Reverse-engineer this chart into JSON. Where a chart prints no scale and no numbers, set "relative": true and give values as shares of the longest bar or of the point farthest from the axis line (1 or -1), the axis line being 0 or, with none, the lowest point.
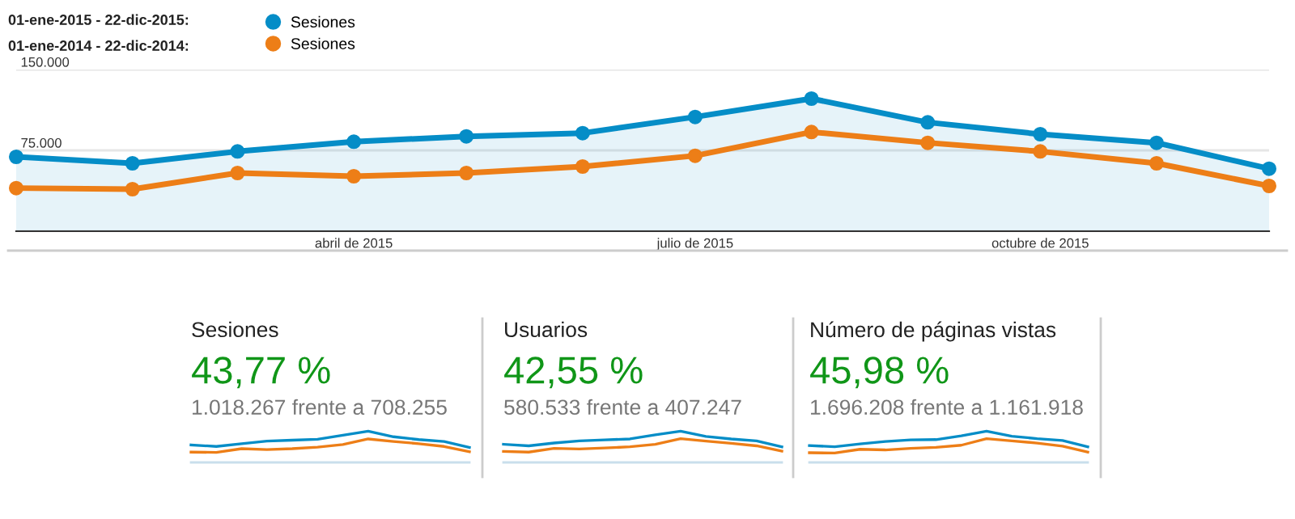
{
  "chart_data": [
    {
      "type": "line",
      "annotations": [
        "01-ene-2015 - 22-dic-2015:",
        "01-ene-2014 - 22-dic-2014:"
      ],
      "x": [
        "2015-01-01",
        "2015-02-01",
        "2015-03-01",
        "2015-04-01",
        "2015-05-01",
        "2015-06-01",
        "2015-07-01",
        "2015-08-01",
        "2015-09-01",
        "2015-10-01",
        "2015-11-01",
        "2015-12-01"
      ],
      "series": [
        {
          "name": "Sesiones",
          "type": "area",
          "color": "#058dc7",
          "values": [
            69000,
            63000,
            74000,
            83000,
            88000,
            91000,
            106000,
            123000,
            101000,
            90000,
            82000,
            58000
          ]
        },
        {
          "name": "Sesiones",
          "type": "line",
          "color": "#ed7e17",
          "values": [
            40000,
            39000,
            54000,
            51000,
            54000,
            60000,
            70000,
            92000,
            82000,
            74000,
            63000,
            42000
          ]
        }
      ],
      "xlim": [
        "2015-01-01",
        "2015-12-01"
      ],
      "ylim": [
        0,
        150000
      ],
      "xticks": [
        {
          "value": "2015-04-01",
          "label": "abril de 2015"
        },
        {
          "value": "2015-07-01",
          "label": "julio de 2015"
        },
        {
          "value": "2015-10-01",
          "label": "octubre de 2015"
        }
      ],
      "yticks": [
        {
          "value": 0,
          "label": null
        },
        {
          "value": 75000,
          "label": "75.000"
        },
        {
          "value": 150000,
          "label": "150.000"
        }
      ],
      "grid": "y",
      "legend": "top left",
      "marker": "circle",
      "line_style": "solid"
    },
    {
      "type": "line",
      "title": "Sesiones",
      "subtitle": "43,77 %",
      "annotations": [
        "1.018.267 frente a 708.255"
      ],
      "relative": true,
      "categories": [
        null,
        null,
        null,
        null,
        null,
        null,
        null,
        null,
        null,
        null,
        null,
        null
      ],
      "series": [
        {
          "color": "#058dc7",
          "values": [
            0.56,
            0.51,
            0.6,
            0.68,
            0.71,
            0.74,
            0.87,
            1.0,
            0.82,
            0.73,
            0.67,
            0.48
          ]
        },
        {
          "color": "#ed7e17",
          "values": [
            0.33,
            0.32,
            0.44,
            0.41,
            0.44,
            0.49,
            0.57,
            0.75,
            0.67,
            0.6,
            0.51,
            0.34
          ]
        }
      ]
    },
    {
      "type": "line",
      "title": "Usuarios",
      "subtitle": "42,55 %",
      "annotations": [
        "580.533 frente a 407.247"
      ],
      "relative": true,
      "categories": [
        null,
        null,
        null,
        null,
        null,
        null,
        null,
        null,
        null,
        null,
        null,
        null
      ],
      "series": [
        {
          "color": "#058dc7",
          "values": [
            0.58,
            0.53,
            0.62,
            0.69,
            0.72,
            0.75,
            0.88,
            1.0,
            0.83,
            0.75,
            0.69,
            0.5
          ]
        },
        {
          "color": "#ed7e17",
          "values": [
            0.35,
            0.33,
            0.45,
            0.43,
            0.46,
            0.5,
            0.58,
            0.76,
            0.68,
            0.61,
            0.53,
            0.36
          ]
        }
      ]
    },
    {
      "type": "line",
      "title": "Número de páginas vistas",
      "subtitle": "45,98 %",
      "annotations": [
        "1.696.208 frente a 1.161.918"
      ],
      "relative": true,
      "categories": [
        null,
        null,
        null,
        null,
        null,
        null,
        null,
        null,
        null,
        null,
        null,
        null
      ],
      "series": [
        {
          "color": "#058dc7",
          "values": [
            0.54,
            0.5,
            0.59,
            0.67,
            0.72,
            0.73,
            0.85,
            1.0,
            0.84,
            0.76,
            0.7,
            0.5
          ]
        },
        {
          "color": "#ed7e17",
          "values": [
            0.31,
            0.3,
            0.42,
            0.4,
            0.45,
            0.48,
            0.55,
            0.76,
            0.69,
            0.62,
            0.52,
            0.33
          ]
        }
      ]
    }
  ]
}
